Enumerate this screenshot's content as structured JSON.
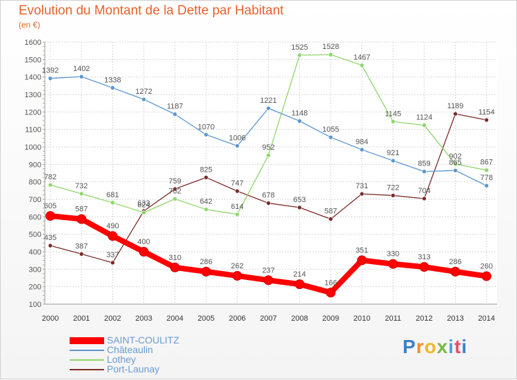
{
  "title": "Evolution du Montant de la Dette par Habitant",
  "subtitle": "(en €)",
  "brand": "Proxiti",
  "chart_data": {
    "type": "line",
    "x": [
      "2000",
      "2001",
      "2002",
      "2003",
      "2004",
      "2005",
      "2006",
      "2007",
      "2008",
      "2009",
      "2010",
      "2011",
      "2012",
      "2013",
      "2014"
    ],
    "ylim": [
      100,
      1600
    ],
    "yticks": [
      100,
      200,
      300,
      400,
      500,
      600,
      700,
      800,
      900,
      1000,
      1100,
      1200,
      1300,
      1400,
      1500,
      1600
    ],
    "grid": true,
    "legend_position": "bottom-left",
    "series": [
      {
        "name": "SAINT-COULITZ",
        "color": "#ff0000",
        "values": [
          605,
          587,
          490,
          400,
          310,
          286,
          262,
          237,
          214,
          166,
          351,
          330,
          313,
          286,
          260
        ]
      },
      {
        "name": "Châteaulin",
        "color": "#5b96d0",
        "values": [
          1392,
          1402,
          1338,
          1272,
          1187,
          1070,
          1006,
          1221,
          1148,
          1055,
          984,
          921,
          859,
          865,
          778
        ]
      },
      {
        "name": "Lothey",
        "color": "#8ed66a",
        "values": [
          782,
          732,
          681,
          624,
          702,
          642,
          614,
          952,
          1525,
          1528,
          1467,
          1145,
          1124,
          902,
          867
        ]
      },
      {
        "name": "Port-Launay",
        "color": "#7b2a2a",
        "values": [
          435,
          387,
          337,
          633,
          759,
          825,
          747,
          678,
          653,
          587,
          731,
          722,
          704,
          1189,
          1154
        ]
      }
    ]
  }
}
